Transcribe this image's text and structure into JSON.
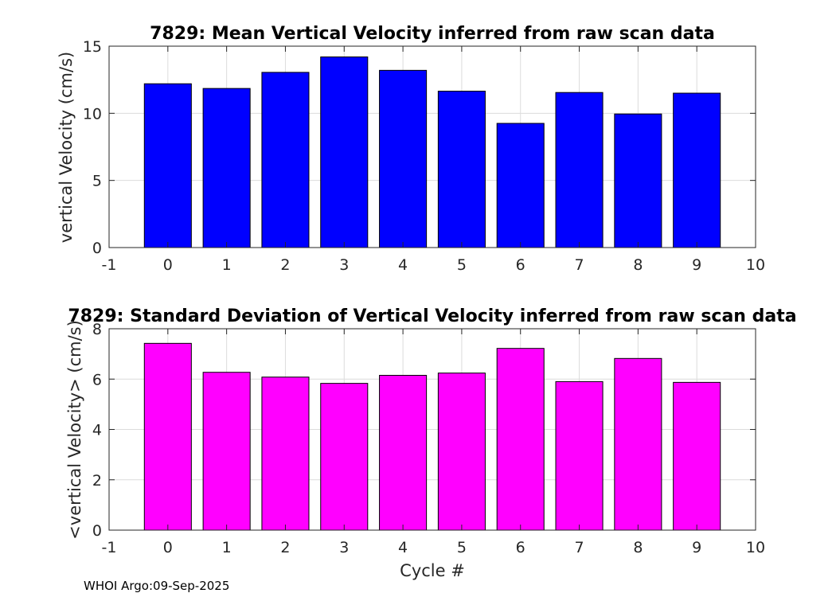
{
  "chart_data": [
    {
      "type": "bar",
      "title": "7829: Mean Vertical Velocity inferred from raw scan data",
      "xlabel": "",
      "ylabel": "vertical Velocity (cm/s)",
      "categories": [
        0,
        1,
        2,
        3,
        4,
        5,
        6,
        7,
        8,
        9
      ],
      "values": [
        12.2,
        11.85,
        13.05,
        14.2,
        13.2,
        11.65,
        9.25,
        11.55,
        9.95,
        11.5
      ],
      "xlim": [
        -1,
        10
      ],
      "ylim": [
        0,
        15
      ],
      "xticks": [
        "-1",
        "0",
        "1",
        "2",
        "3",
        "4",
        "5",
        "6",
        "7",
        "8",
        "9",
        "10"
      ],
      "yticks": [
        "0",
        "5",
        "10",
        "15"
      ],
      "grid": true,
      "bar_color": "#0000ff"
    },
    {
      "type": "bar",
      "title": "7829: Standard Deviation of Vertical Velocity inferred from raw scan data",
      "xlabel": "Cycle #",
      "ylabel": "<vertical Velocity> (cm/s)",
      "categories": [
        0,
        1,
        2,
        3,
        4,
        5,
        6,
        7,
        8,
        9
      ],
      "values": [
        7.42,
        6.27,
        6.08,
        5.83,
        6.15,
        6.24,
        7.22,
        5.9,
        6.82,
        5.87
      ],
      "xlim": [
        -1,
        10
      ],
      "ylim": [
        0,
        8
      ],
      "xticks": [
        "-1",
        "0",
        "1",
        "2",
        "3",
        "4",
        "5",
        "6",
        "7",
        "8",
        "9",
        "10"
      ],
      "yticks": [
        "0",
        "2",
        "4",
        "6",
        "8"
      ],
      "grid": true,
      "bar_color": "#ff00ff"
    }
  ],
  "footer": {
    "text": "WHOI Argo:09-Sep-2025"
  }
}
